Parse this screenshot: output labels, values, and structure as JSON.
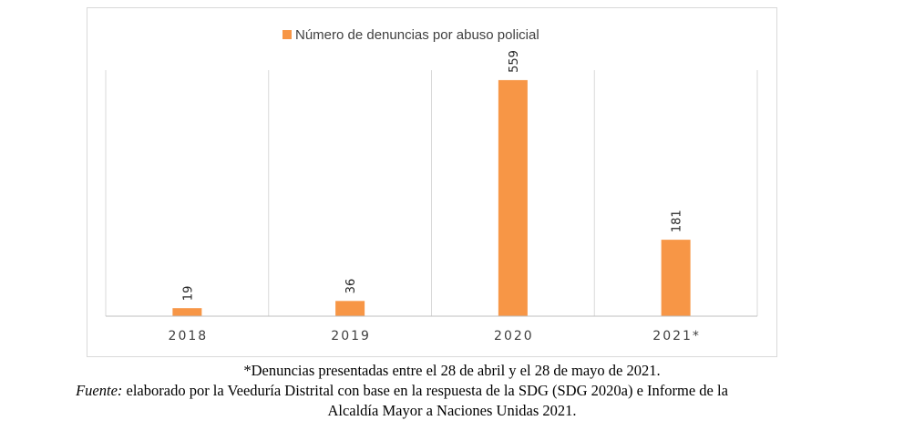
{
  "chart_data": {
    "type": "bar",
    "categories": [
      "2018",
      "2019",
      "2020",
      "2021*"
    ],
    "series": [
      {
        "name": "Número de denuncias por abuso policial",
        "values": [
          19,
          36,
          559,
          181
        ]
      }
    ],
    "data_labels": [
      "19",
      "36",
      "559",
      "181"
    ],
    "title": "",
    "xlabel": "",
    "ylabel": "",
    "ylim": [
      0,
      600
    ],
    "grid": "vertical category separators",
    "legend": "top-center",
    "colors": {
      "bar": "#f79646",
      "grid": "#d9d9d9",
      "axis": "#bfbfbf"
    }
  },
  "caption": {
    "note": "*Denuncias presentadas entre el 28 de abril y el 28 de mayo de 2021.",
    "source_label": "Fuente:",
    "source_text": " elaborado por la Veeduría Distrital con base en la respuesta de la SDG (SDG 2020a) e Informe de la",
    "source_text_2": "Alcaldía Mayor a Naciones Unidas 2021."
  }
}
